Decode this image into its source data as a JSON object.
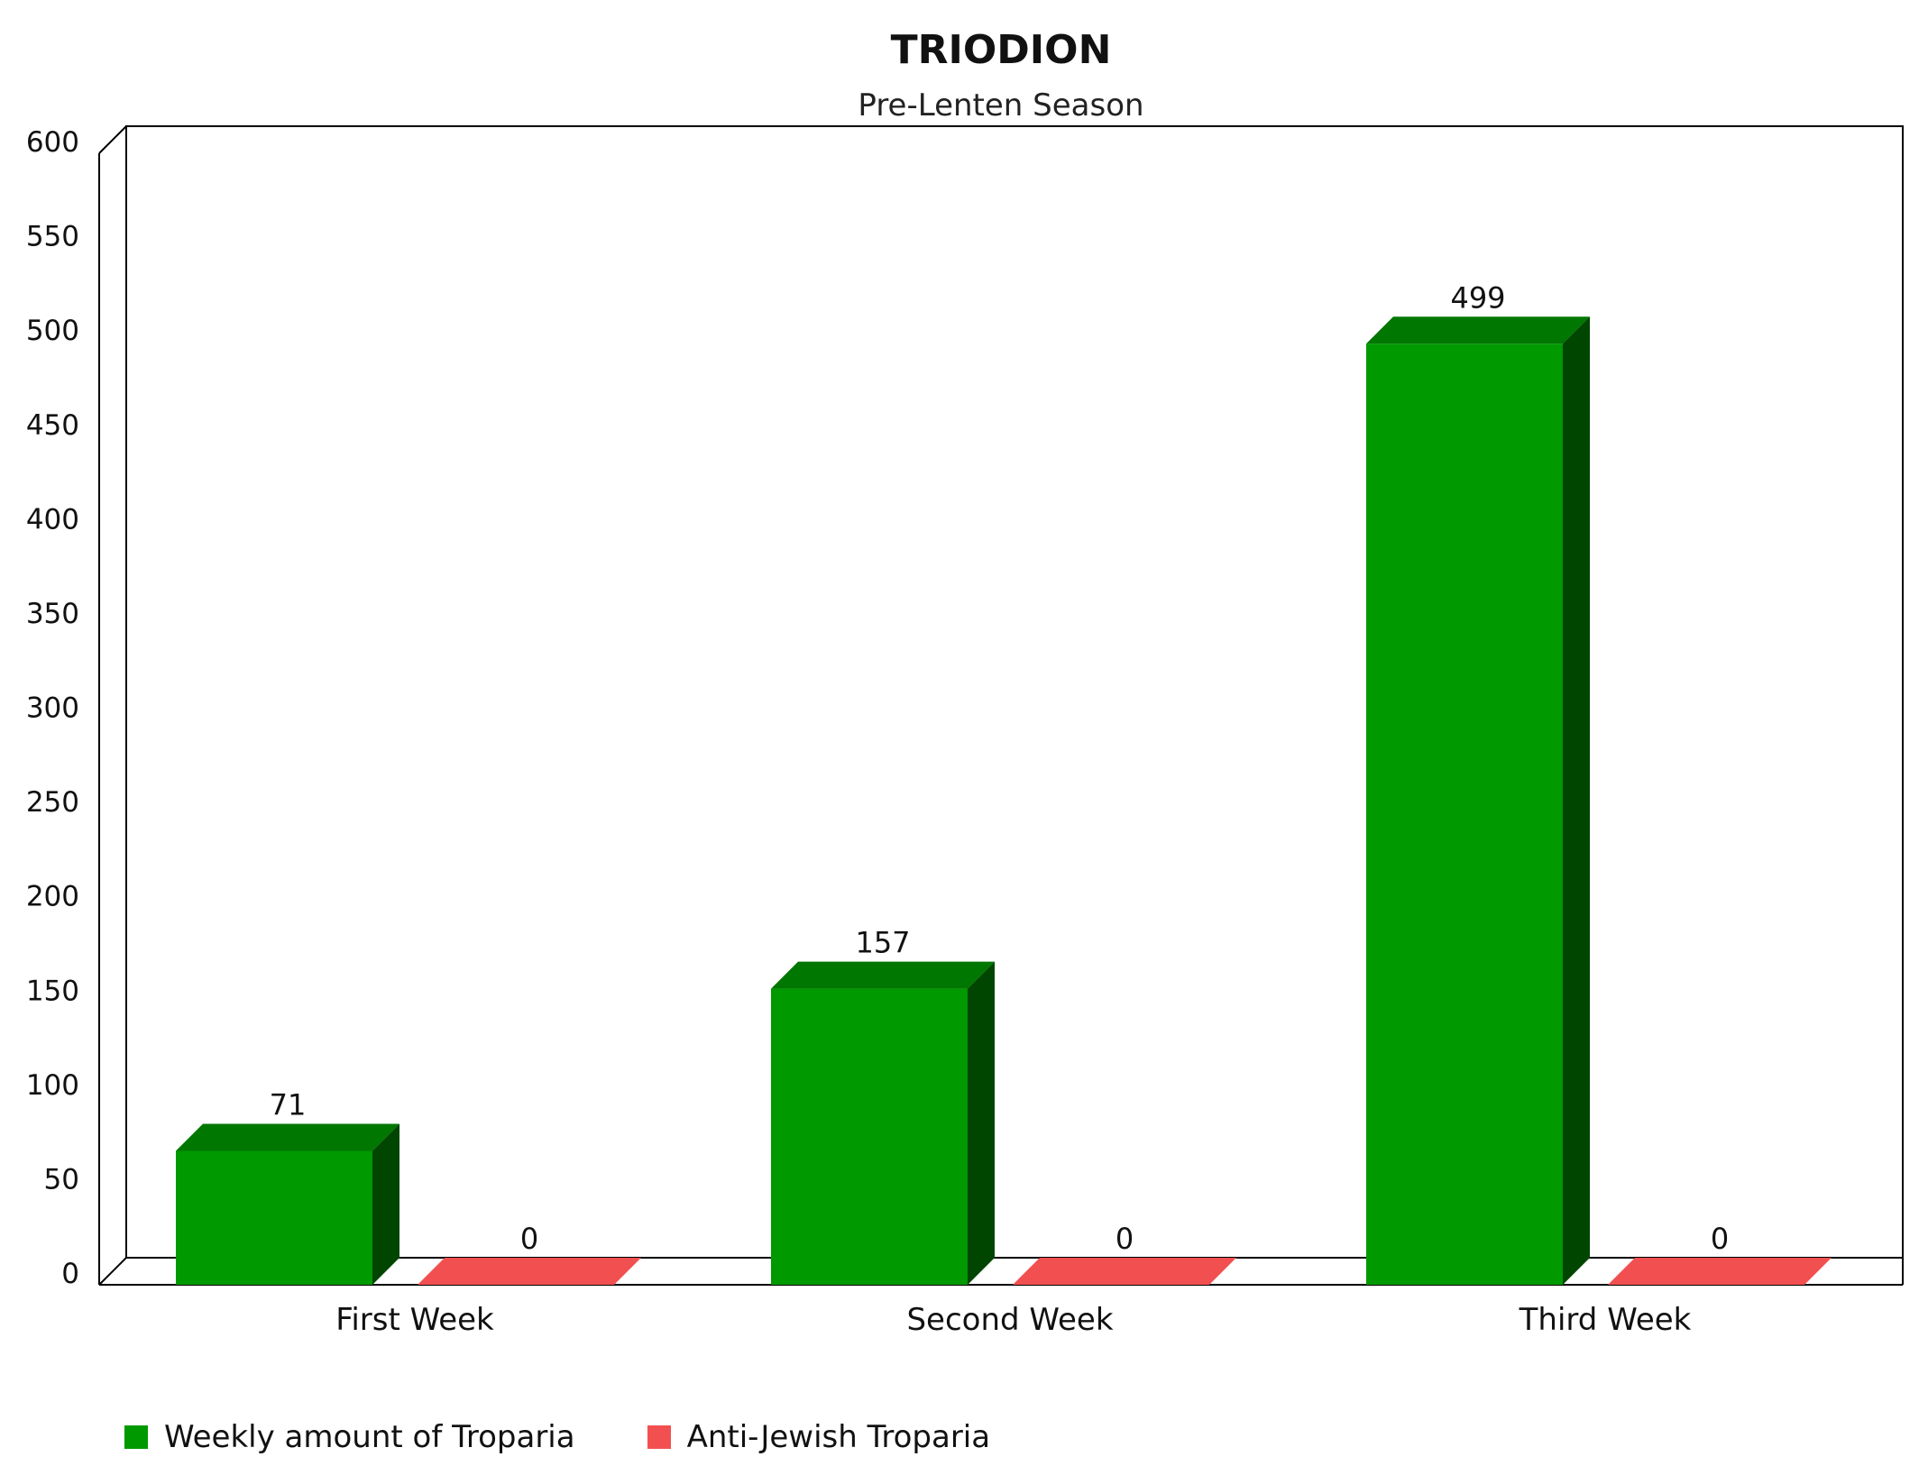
{
  "chart_data": {
    "type": "bar",
    "title": "TRIODION",
    "subtitle": "Pre-Lenten Season",
    "categories": [
      "First Week",
      "Second Week",
      "Third Week"
    ],
    "series": [
      {
        "name": "Weekly amount of Troparia",
        "values": [
          71,
          157,
          499
        ],
        "color": "#009900"
      },
      {
        "name": "Anti-Jewish Troparia",
        "values": [
          0,
          0,
          0
        ],
        "color": "#f25050"
      }
    ],
    "yticks": [
      "0",
      "50",
      "100",
      "150",
      "200",
      "250",
      "300",
      "350",
      "400",
      "450",
      "500",
      "550",
      "600"
    ],
    "ylim": [
      0,
      600
    ],
    "grid": false,
    "legend_position": "bottom-left",
    "style": "3d"
  }
}
